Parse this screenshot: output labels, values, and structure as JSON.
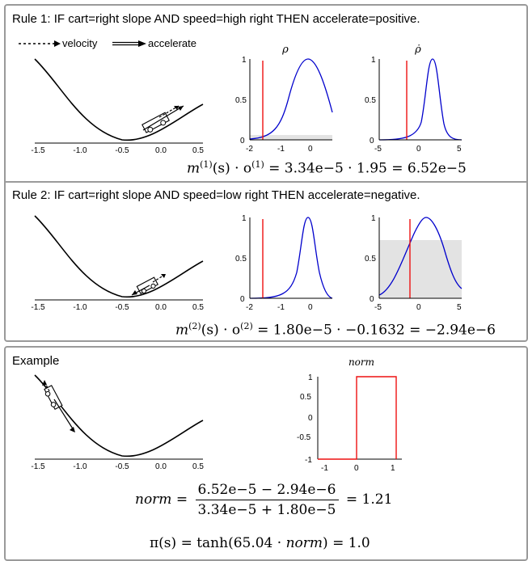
{
  "rule1": {
    "title": "Rule 1: IF cart=right slope AND speed=high right THEN accelerate=positive.",
    "eq_m": "m",
    "eq_sup1": "(1)",
    "eq_s": "(s) · o",
    "eq_sup2": "(1)",
    "eq_rest": " = 3.34e−5 · 1.95 = 6.52e−5"
  },
  "rule2": {
    "title": "Rule 2: IF cart=right slope AND speed=low right THEN accelerate=negative.",
    "eq_m": "m",
    "eq_sup1": "(2)",
    "eq_s": "(s) · o",
    "eq_sup2": "(2)",
    "eq_rest": " = 1.80e−5 · −0.1632 = −2.94e−6"
  },
  "example": {
    "title": "Example",
    "norm_lhs": "norm",
    "norm_num": "6.52e−5 − 2.94e−6",
    "norm_den": "3.34e−5 + 1.80e−5",
    "norm_rhs": "= 1.21",
    "pi_eq_a": "π(s) = tanh(65.04 · ",
    "pi_eq_norm": "norm",
    "pi_eq_b": ") = 1.0"
  },
  "legend": {
    "velocity": "velocity",
    "accelerate": "accelerate"
  },
  "axes": {
    "mc_ticks": [
      "-1.5",
      "-1.0",
      "-0.5",
      "0.0",
      "0.5"
    ],
    "rho_title": "ρ",
    "rhodot_title": "ρ̇",
    "rho_xticks": [
      "-2",
      "-1",
      "0"
    ],
    "rhodot_xticks": [
      "-5",
      "0",
      "5"
    ],
    "yticks": [
      "0",
      "0.5",
      "1"
    ],
    "norm_title": "norm",
    "norm_yticks": [
      "-1",
      "-0.5",
      "0",
      "0.5",
      "1"
    ],
    "norm_xticks": [
      "-1",
      "0",
      "1"
    ]
  },
  "colors": {
    "curve": "#0000cc",
    "marker": "#ee1111",
    "shade": "#e3e3e3",
    "frame": "#9a9a9a"
  }
}
